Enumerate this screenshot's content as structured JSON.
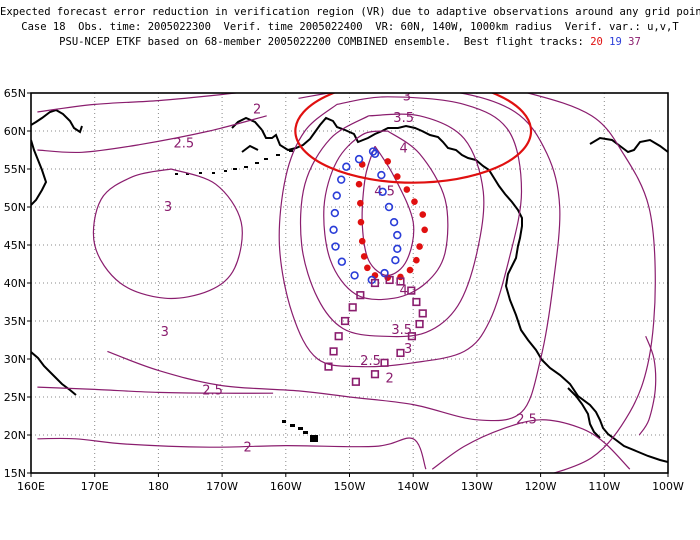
{
  "header": {
    "line1": "Expected forecast error reduction in verification region (VR) due to adaptive observations around any grid point.",
    "line2": "Case 18  Obs. time: 2005022300  Verif. time 2005022400  VR: 60N, 140W, 1000km radius  Verif. var.: u,v,T",
    "line3_prefix": "PSU-NCEP ETKF based on 68-member 2005022200 COMBINED ensemble.  Best flight tracks: ",
    "track_a": "20",
    "track_b": "19",
    "track_c": "37"
  },
  "axes": {
    "lon_ticks": [
      "160E",
      "170E",
      "180",
      "170W",
      "160W",
      "150W",
      "140W",
      "130W",
      "120W",
      "110W",
      "100W"
    ],
    "lat_ticks": [
      "65N",
      "60N",
      "55N",
      "50N",
      "45N",
      "40N",
      "35N",
      "30N",
      "25N",
      "20N",
      "15N"
    ]
  },
  "contour_labels": [
    {
      "text": "2",
      "lon": -164.5,
      "lat": 62.3
    },
    {
      "text": "2.5",
      "lon": -176,
      "lat": 57.8
    },
    {
      "text": "3",
      "lon": -178.5,
      "lat": 49.5
    },
    {
      "text": "3",
      "lon": -179,
      "lat": 33
    },
    {
      "text": "2.5",
      "lon": -171.5,
      "lat": 25.3
    },
    {
      "text": "2",
      "lon": -166,
      "lat": 17.8
    },
    {
      "text": "3",
      "lon": -141,
      "lat": 64
    },
    {
      "text": "3.5",
      "lon": -141.5,
      "lat": 61.2
    },
    {
      "text": "4",
      "lon": -141.5,
      "lat": 57.2
    },
    {
      "text": "4.5",
      "lon": -144.5,
      "lat": 51.5
    },
    {
      "text": "4",
      "lon": -141.5,
      "lat": 38.5
    },
    {
      "text": "3.5",
      "lon": -141.8,
      "lat": 33.3
    },
    {
      "text": "3",
      "lon": -140.8,
      "lat": 30.8
    },
    {
      "text": "2.5",
      "lon": -146.7,
      "lat": 29.2
    },
    {
      "text": "2",
      "lon": -143.7,
      "lat": 26.9
    },
    {
      "text": "2.5",
      "lon": -122.2,
      "lat": 21.5
    }
  ],
  "contours": [
    {
      "level": "4.5",
      "pts": [
        [
          -146,
          58
        ],
        [
          -143,
          54
        ],
        [
          -140,
          48
        ],
        [
          -141,
          43
        ],
        [
          -144,
          41
        ],
        [
          -147,
          43
        ],
        [
          -148,
          48
        ],
        [
          -147.5,
          54
        ],
        [
          -146,
          58
        ]
      ]
    },
    {
      "level": "4",
      "pts": [
        [
          -144,
          60
        ],
        [
          -139,
          57
        ],
        [
          -135,
          51
        ],
        [
          -135,
          44
        ],
        [
          -138,
          40
        ],
        [
          -143,
          38
        ],
        [
          -149,
          38.5
        ],
        [
          -153,
          43
        ],
        [
          -154,
          50
        ],
        [
          -152,
          56
        ],
        [
          -148,
          59.5
        ],
        [
          -144,
          60
        ]
      ]
    },
    {
      "level": "3.5",
      "pts": [
        [
          -147,
          62
        ],
        [
          -139,
          62
        ],
        [
          -132,
          59
        ],
        [
          -129,
          52
        ],
        [
          -130,
          44
        ],
        [
          -133,
          37
        ],
        [
          -138,
          33.5
        ],
        [
          -145,
          33
        ],
        [
          -151,
          34
        ],
        [
          -155,
          38
        ],
        [
          -157.5,
          45
        ],
        [
          -157,
          53
        ],
        [
          -153,
          59
        ],
        [
          -147,
          62
        ]
      ]
    },
    {
      "level": "3",
      "pts": [
        [
          -152,
          63.5
        ],
        [
          -144,
          64.5
        ],
        [
          -132,
          63.5
        ],
        [
          -125,
          60
        ],
        [
          -123,
          52
        ],
        [
          -125,
          43
        ],
        [
          -128,
          35
        ],
        [
          -132,
          31
        ],
        [
          -140,
          29.5
        ],
        [
          -148,
          29
        ],
        [
          -155,
          30
        ],
        [
          -159,
          36
        ],
        [
          -161,
          45
        ],
        [
          -160,
          54
        ],
        [
          -157,
          60
        ],
        [
          -152,
          63.5
        ]
      ]
    },
    {
      "level": "2.5",
      "pts": [
        [
          -158,
          64.3
        ],
        [
          -148,
          65.5
        ],
        [
          -134,
          65.2
        ],
        [
          -124,
          62.5
        ],
        [
          -119,
          57
        ],
        [
          -117,
          50
        ],
        [
          -118,
          40
        ],
        [
          -120,
          30
        ],
        [
          -123,
          23
        ],
        [
          -130,
          22
        ],
        [
          -140,
          24
        ],
        [
          -150,
          25
        ],
        [
          -158,
          25.8
        ],
        [
          -170,
          26.5
        ],
        [
          -180,
          28.5
        ],
        [
          -188,
          31
        ]
      ]
    },
    {
      "level": "2",
      "pts": [
        [
          -163,
          65.5
        ],
        [
          -150,
          66.5
        ],
        [
          -135,
          67
        ],
        [
          -122,
          65
        ],
        [
          -112,
          62
        ],
        [
          -107,
          57
        ],
        [
          -103,
          50
        ],
        [
          -102,
          40
        ],
        [
          -103,
          30
        ],
        [
          -106,
          23
        ],
        [
          -112,
          17
        ],
        [
          -122,
          14
        ]
      ]
    },
    {
      "level": "2.5b",
      "pts": [
        [
          -199,
          57.5
        ],
        [
          -192,
          57.2
        ],
        [
          -183,
          58.2
        ],
        [
          -172,
          60
        ],
        [
          -163,
          62
        ]
      ]
    },
    {
      "level": "2a",
      "pts": [
        [
          -199,
          62.5
        ],
        [
          -190,
          63.5
        ],
        [
          -180,
          64
        ],
        [
          -170,
          64.8
        ],
        [
          -163,
          65.5
        ]
      ]
    },
    {
      "level": "3b",
      "pts": [
        [
          -178,
          55
        ],
        [
          -171,
          53
        ],
        [
          -167,
          48
        ],
        [
          -168,
          42
        ],
        [
          -172,
          39
        ],
        [
          -179,
          38
        ],
        [
          -186,
          40
        ],
        [
          -190,
          45
        ],
        [
          -189,
          51
        ],
        [
          -184,
          54
        ],
        [
          -178,
          55
        ]
      ]
    },
    {
      "level": "2c",
      "pts": [
        [
          -199,
          19.5
        ],
        [
          -193,
          19.5
        ],
        [
          -185,
          18.8
        ],
        [
          -172,
          18.4
        ],
        [
          -160,
          18.6
        ],
        [
          -146,
          18.5
        ],
        [
          -140,
          19.5
        ],
        [
          -138,
          15.5
        ]
      ]
    },
    {
      "level": "2.5c",
      "pts": [
        [
          -199,
          26.3
        ],
        [
          -190,
          26
        ],
        [
          -180,
          25.6
        ],
        [
          -170,
          25.5
        ],
        [
          -162,
          25.5
        ]
      ]
    },
    {
      "level": "2.5d",
      "pts": [
        [
          -137,
          15.5
        ],
        [
          -132,
          18.5
        ],
        [
          -126,
          20.8
        ],
        [
          -120,
          22
        ],
        [
          -114,
          21
        ],
        [
          -110,
          19
        ],
        [
          -106,
          15.5
        ]
      ]
    },
    {
      "level": "2e",
      "pts": [
        [
          -103.5,
          33
        ],
        [
          -102.2,
          30
        ],
        [
          -102,
          26
        ],
        [
          -103,
          22
        ],
        [
          -104.5,
          20
        ]
      ]
    }
  ],
  "verification_region": {
    "lon": -140,
    "lat": 60,
    "rx_deg": 18.5,
    "ry_deg": 6.8
  },
  "tracks": {
    "track20": [
      [
        -148,
        55.6
      ],
      [
        -148.5,
        53
      ],
      [
        -148.3,
        50.5
      ],
      [
        -148.2,
        48
      ],
      [
        -148,
        45.5
      ],
      [
        -147.7,
        43.5
      ],
      [
        -147.2,
        42
      ],
      [
        -146,
        41
      ],
      [
        -144,
        40.7
      ],
      [
        -142,
        40.8
      ],
      [
        -140.5,
        41.7
      ],
      [
        -139.5,
        43
      ],
      [
        -139,
        44.8
      ],
      [
        -138.2,
        47
      ],
      [
        -138.5,
        49
      ],
      [
        -139.8,
        50.7
      ],
      [
        -141,
        52.3
      ],
      [
        -142.5,
        54
      ],
      [
        -144,
        56
      ]
    ],
    "track19": [
      [
        -146,
        57
      ],
      [
        -145,
        54.2
      ],
      [
        -144.8,
        52
      ],
      [
        -143.8,
        50
      ],
      [
        -143,
        48
      ],
      [
        -142.5,
        46.3
      ],
      [
        -142.5,
        44.5
      ],
      [
        -142.8,
        43
      ],
      [
        -144.5,
        41.3
      ],
      [
        -146.5,
        40.4
      ],
      [
        -149.2,
        41
      ],
      [
        -151.2,
        42.8
      ],
      [
        -152.2,
        44.8
      ],
      [
        -152.5,
        47
      ],
      [
        -152.3,
        49.2
      ],
      [
        -152,
        51.5
      ],
      [
        -151.3,
        53.6
      ],
      [
        -150.5,
        55.3
      ],
      [
        -148.5,
        56.3
      ],
      [
        -146.3,
        57.3
      ]
    ],
    "track37": [
      [
        -146,
        40
      ],
      [
        -148.3,
        38.4
      ],
      [
        -149.5,
        36.8
      ],
      [
        -150.7,
        35
      ],
      [
        -151.7,
        33
      ],
      [
        -152.5,
        31
      ],
      [
        -153.3,
        29
      ],
      [
        -149,
        27
      ],
      [
        -146,
        28
      ],
      [
        -144.5,
        29.5
      ],
      [
        -142,
        30.8
      ],
      [
        -140.2,
        33
      ],
      [
        -139,
        34.6
      ],
      [
        -138.5,
        36
      ],
      [
        -139.5,
        37.5
      ],
      [
        -140.3,
        39
      ],
      [
        -142,
        40.2
      ],
      [
        -143.7,
        40.4
      ]
    ]
  },
  "colors": {
    "contour": "#8a1d6e",
    "track20": "#e01010",
    "track19": "#2a3dd8",
    "track37": "#8a1d6e",
    "vr_circle": "#e01010",
    "coast": "#000000"
  }
}
